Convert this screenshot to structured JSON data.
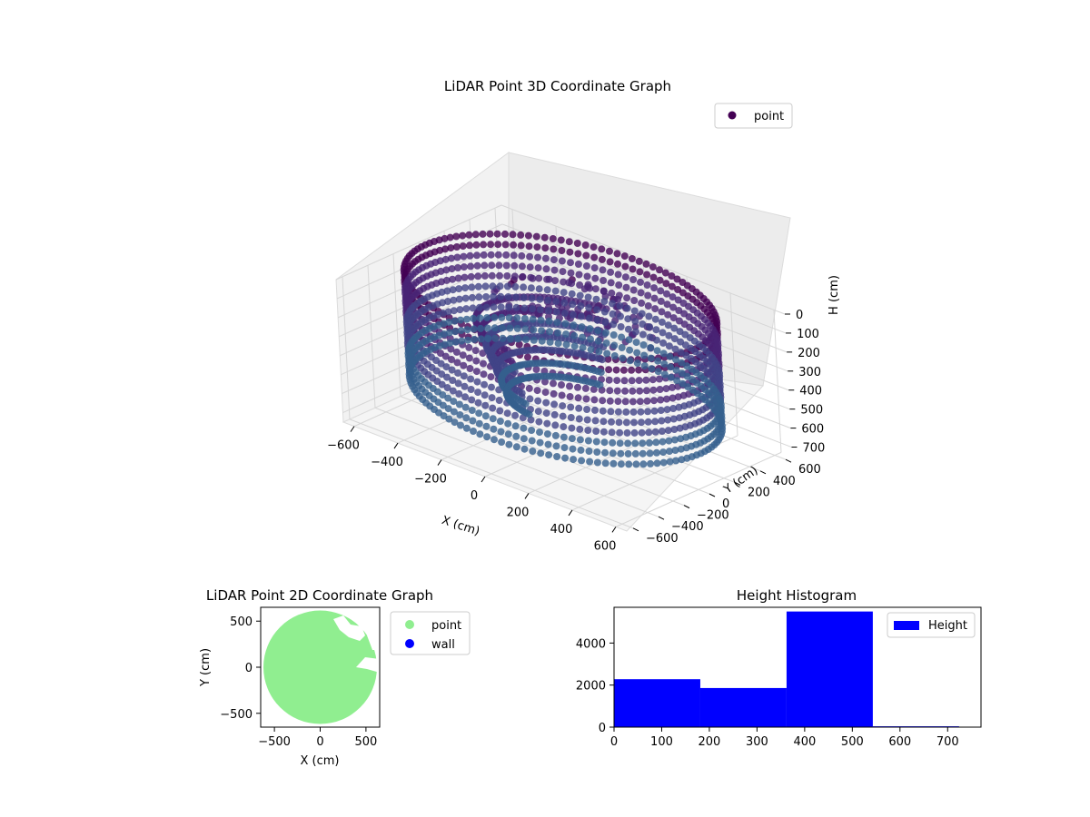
{
  "chart_data": [
    {
      "type": "scatter",
      "title": "LiDAR Point 3D Coordinate Graph",
      "xlabel": "X (cm)",
      "ylabel": "Y (cm)",
      "zlabel": "H (cm)",
      "x_ticks": [
        "−600",
        "−400",
        "−200",
        "0",
        "200",
        "400",
        "600"
      ],
      "y_ticks": [
        "−600",
        "−400",
        "−200",
        "0",
        "200",
        "400",
        "600"
      ],
      "z_ticks": [
        "0",
        "100",
        "200",
        "300",
        "400",
        "500",
        "600",
        "700"
      ],
      "xlim": [
        -650,
        650
      ],
      "ylim": [
        -650,
        650
      ],
      "zlim": [
        0,
        750
      ],
      "z_inverted": true,
      "grid": true,
      "legend": {
        "position": "top-right",
        "entries": [
          {
            "label": "point",
            "color": "#440154"
          }
        ]
      },
      "series": [
        {
          "name": "point",
          "shape": "cylindrical wall of points, radius ~620 cm, height 0–550 cm, plus interior points",
          "colormap": "viridis"
        }
      ]
    },
    {
      "type": "scatter",
      "title": "LiDAR Point 2D Coordinate Graph",
      "xlabel": "X (cm)",
      "ylabel": "Y (cm)",
      "x_ticks": [
        "−500",
        "0",
        "500"
      ],
      "y_ticks": [
        "−500",
        "0",
        "500"
      ],
      "xlim": [
        -650,
        650
      ],
      "ylim": [
        -650,
        650
      ],
      "legend": {
        "position": "outside-right",
        "entries": [
          {
            "label": "point",
            "color": "#90ee90"
          },
          {
            "label": "wall",
            "color": "#0000ff"
          }
        ]
      },
      "series": [
        {
          "name": "point",
          "color": "#90ee90",
          "shape": "filled disk radius ~620 cm"
        },
        {
          "name": "wall",
          "color": "#0000ff"
        }
      ]
    },
    {
      "type": "bar",
      "title": "Height Histogram",
      "xlabel": "",
      "ylabel": "",
      "x_ticks": [
        "0",
        "100",
        "200",
        "300",
        "400",
        "500",
        "600",
        "700"
      ],
      "y_ticks": [
        "0",
        "2000",
        "4000"
      ],
      "xlim": [
        0,
        770
      ],
      "ylim": [
        0,
        5700
      ],
      "bin_edges": [
        0,
        181,
        362,
        543,
        724
      ],
      "values": [
        2280,
        1860,
        5500,
        40
      ],
      "color": "#0000ff",
      "legend": {
        "position": "top-right",
        "entries": [
          {
            "label": "Height",
            "color": "#0000ff"
          }
        ]
      }
    }
  ]
}
